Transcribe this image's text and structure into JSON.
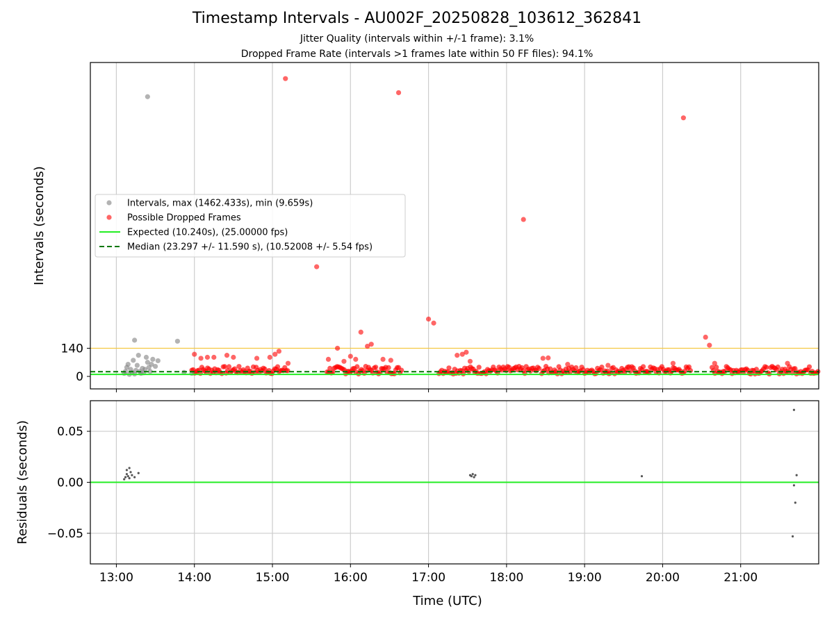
{
  "title": "Timestamp Intervals - AU002F_20250828_103612_362841",
  "subtitle_lines": [
    "Jitter Quality (intervals within +/-1 frame): 3.1%",
    "Dropped Frame Rate (intervals >1 frames late within 50 FF files): 94.1%"
  ],
  "colors": {
    "gray_points": "#808080",
    "red_points": "#ff0000",
    "expected_line": "#22ee22",
    "median_line": "#007700",
    "threshold_line": "#f5c842",
    "grid": "#cccccc"
  },
  "chart_data": [
    {
      "type": "scatter",
      "ylabel": "Intervals (seconds)",
      "xlim": [
        "12:40",
        "22:00"
      ],
      "xticks": [
        "13:00",
        "14:00",
        "15:00",
        "16:00",
        "17:00",
        "18:00",
        "19:00",
        "20:00",
        "21:00"
      ],
      "yticks": [
        0,
        140
      ],
      "ylim": [
        -62,
        1560
      ],
      "grid": "vertical",
      "legend_position": "center-left",
      "legend": [
        "Intervals, max (1462.433s), min (9.659s)",
        "Possible Dropped Frames",
        "Expected (10.240s), (25.00000 fps)",
        "Median (23.297 +/- 11.590 s), (10.52008 +/- 5.54 fps)"
      ],
      "reference_lines": {
        "expected": 10.24,
        "median": 23.297,
        "threshold": 140
      },
      "series": [
        {
          "name": "Intervals, max (1462.433s), min (9.659s)",
          "color": "gray",
          "points": [
            [
              "13:06",
              15
            ],
            [
              "13:07",
              25
            ],
            [
              "13:08",
              45
            ],
            [
              "13:09",
              60
            ],
            [
              "13:10",
              10
            ],
            [
              "13:11",
              35
            ],
            [
              "13:12",
              20
            ],
            [
              "13:13",
              80
            ],
            [
              "13:14",
              12
            ],
            [
              "13:15",
              30
            ],
            [
              "13:16",
              55
            ],
            [
              "13:17",
              105
            ],
            [
              "13:18",
              25
            ],
            [
              "13:19",
              15
            ],
            [
              "13:20",
              40
            ],
            [
              "13:21",
              18
            ],
            [
              "13:22",
              35
            ],
            [
              "13:23",
              95
            ],
            [
              "13:24",
              70
            ],
            [
              "13:25",
              45
            ],
            [
              "13:26",
              25
            ],
            [
              "13:27",
              60
            ],
            [
              "13:28",
              85
            ],
            [
              "13:30",
              50
            ],
            [
              "13:32",
              78
            ],
            [
              "13:14",
              180
            ],
            [
              "13:24",
              1390
            ],
            [
              "13:47",
              175
            ],
            [
              "13:52",
              20
            ],
            [
              "13:58",
              15
            ]
          ]
        },
        {
          "name": "Possible Dropped Frames",
          "color": "red",
          "points": [
            [
              "15:10",
              1480
            ],
            [
              "16:37",
              1410
            ],
            [
              "20:16",
              1285
            ],
            [
              "18:13",
              780
            ],
            [
              "15:34",
              545
            ],
            [
              "17:00",
              285
            ],
            [
              "17:04",
              265
            ],
            [
              "16:08",
              220
            ],
            [
              "20:33",
              195
            ],
            [
              "20:36",
              155
            ],
            [
              "16:16",
              160
            ],
            [
              "16:13",
              150
            ],
            [
              "15:50",
              140
            ],
            [
              "15:05",
              125
            ],
            [
              "14:00",
              110
            ],
            [
              "14:05",
              90
            ],
            [
              "14:10",
              95
            ],
            [
              "14:15",
              95
            ],
            [
              "14:25",
              105
            ],
            [
              "14:30",
              95
            ],
            [
              "14:48",
              90
            ],
            [
              "14:58",
              95
            ],
            [
              "15:02",
              110
            ],
            [
              "15:12",
              65
            ],
            [
              "15:43",
              85
            ],
            [
              "15:55",
              75
            ],
            [
              "16:00",
              100
            ],
            [
              "16:04",
              85
            ],
            [
              "16:25",
              85
            ],
            [
              "16:31",
              80
            ],
            [
              "17:22",
              105
            ],
            [
              "17:26",
              110
            ],
            [
              "17:29",
              120
            ],
            [
              "17:32",
              75
            ],
            [
              "18:28",
              90
            ],
            [
              "18:32",
              92
            ],
            [
              "18:47",
              60
            ],
            [
              "19:18",
              55
            ],
            [
              "20:08",
              65
            ],
            [
              "20:40",
              65
            ],
            [
              "21:36",
              65
            ]
          ]
        }
      ]
    },
    {
      "type": "scatter",
      "xlabel": "Time (UTC)",
      "ylabel": "Residuals (seconds)",
      "xlim": [
        "12:40",
        "22:00"
      ],
      "xticks": [
        "13:00",
        "14:00",
        "15:00",
        "16:00",
        "17:00",
        "18:00",
        "19:00",
        "20:00",
        "21:00"
      ],
      "yticks": [
        "0.05",
        "0.00",
        "−0.05"
      ],
      "ylim": [
        -0.08,
        0.08
      ],
      "grid": "both",
      "reference_lines": {
        "zero": 0.0
      },
      "series": [
        {
          "color": "gray",
          "points": [
            [
              "13:06",
              0.003
            ],
            [
              "13:07",
              0.005
            ],
            [
              "13:08",
              0.012
            ],
            [
              "13:08",
              0.008
            ],
            [
              "13:09",
              0.006
            ],
            [
              "13:10",
              0.014
            ],
            [
              "13:10",
              0.004
            ],
            [
              "13:11",
              0.01
            ],
            [
              "13:12",
              0.007
            ],
            [
              "13:14",
              0.005
            ],
            [
              "13:17",
              0.009
            ],
            [
              "17:32",
              0.007
            ],
            [
              "17:33",
              0.006
            ],
            [
              "17:34",
              0.008
            ],
            [
              "17:35",
              0.005
            ],
            [
              "17:36",
              0.007
            ],
            [
              "19:44",
              0.006
            ],
            [
              "21:41",
              0.071
            ],
            [
              "21:43",
              0.007
            ],
            [
              "21:41",
              -0.003
            ],
            [
              "21:42",
              -0.02
            ],
            [
              "21:40",
              -0.053
            ]
          ]
        }
      ]
    }
  ]
}
